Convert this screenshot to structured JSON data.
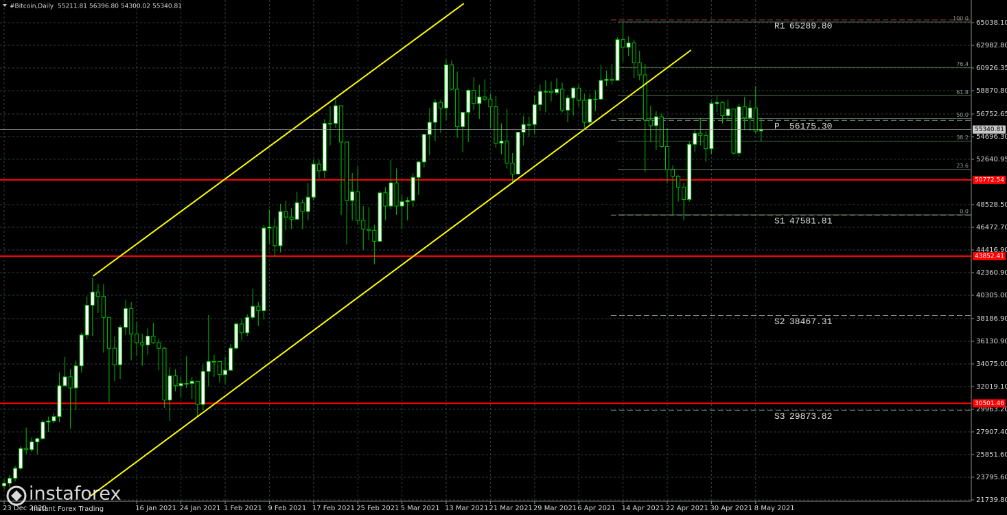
{
  "chart_data": {
    "type": "candlestick",
    "title": "#Bitcoin,Daily",
    "last_bar_labels": [
      "55211.81",
      "56396.80",
      "54300.02",
      "55340.81"
    ],
    "categories": [
      "23 Dec 2020",
      null,
      null,
      null,
      null,
      null,
      null,
      null,
      null,
      null,
      null,
      null,
      null,
      null,
      null,
      null,
      null,
      null,
      null,
      null,
      null,
      null,
      null,
      null,
      "16 Jan 2021",
      null,
      null,
      null,
      null,
      null,
      null,
      null,
      "24 Jan 2021",
      null,
      null,
      null,
      null,
      null,
      null,
      null,
      "1 Feb 2021",
      null,
      null,
      null,
      null,
      null,
      null,
      null,
      "9 Feb 2021",
      null,
      null,
      null,
      null,
      null,
      null,
      null,
      "17 Feb 2021",
      null,
      null,
      null,
      null,
      null,
      null,
      null,
      "25 Feb 2021",
      null,
      null,
      null,
      null,
      null,
      null,
      null,
      "5 Mar 2021",
      null,
      null,
      null,
      null,
      null,
      null,
      null,
      "13 Mar 2021",
      null,
      null,
      null,
      null,
      null,
      null,
      null,
      "21 Mar 2021",
      null,
      null,
      null,
      null,
      null,
      null,
      null,
      "29 Mar 2021",
      null,
      null,
      null,
      null,
      null,
      null,
      null,
      "6 Apr 2021",
      null,
      null,
      null,
      null,
      null,
      null,
      null,
      "14 Apr 2021",
      null,
      null,
      null,
      null,
      null,
      null,
      null,
      "22 Apr 2021",
      null,
      null,
      null,
      null,
      null,
      null,
      null,
      "30 Apr 2021",
      null,
      null,
      null,
      null,
      null,
      null,
      null,
      "8 May 2021",
      null
    ],
    "ohlc": [
      [
        23000,
        23600,
        22700,
        23250
      ],
      [
        23250,
        24000,
        22900,
        23700
      ],
      [
        23700,
        24800,
        23400,
        24600
      ],
      [
        24600,
        26600,
        24400,
        26400
      ],
      [
        26400,
        28300,
        25900,
        26300
      ],
      [
        26300,
        27400,
        26100,
        27000
      ],
      [
        27000,
        27400,
        25900,
        27300
      ],
      [
        27300,
        29000,
        27200,
        28800
      ],
      [
        28800,
        29300,
        27900,
        28900
      ],
      [
        28900,
        29600,
        28700,
        29300
      ],
      [
        29300,
        33300,
        28800,
        32100
      ],
      [
        32100,
        34700,
        32000,
        32900
      ],
      [
        32900,
        33600,
        28200,
        31900
      ],
      [
        31900,
        34400,
        29900,
        33900
      ],
      [
        33900,
        36900,
        33300,
        36700
      ],
      [
        36700,
        40200,
        36300,
        39400
      ],
      [
        39400,
        41900,
        36600,
        40600
      ],
      [
        40600,
        41300,
        38700,
        40200
      ],
      [
        40200,
        41300,
        35100,
        38300
      ],
      [
        38300,
        38300,
        30600,
        35500
      ],
      [
        35500,
        36600,
        32500,
        34000
      ],
      [
        34000,
        37600,
        32700,
        37400
      ],
      [
        37400,
        39900,
        36700,
        39100
      ],
      [
        39100,
        39700,
        34400,
        36800
      ],
      [
        36800,
        37900,
        34800,
        36000
      ],
      [
        36000,
        36800,
        33900,
        35800
      ],
      [
        35800,
        37300,
        34900,
        36600
      ],
      [
        36600,
        37800,
        35900,
        36000
      ],
      [
        36000,
        36400,
        33500,
        35500
      ],
      [
        35500,
        35600,
        30100,
        30800
      ],
      [
        30800,
        33800,
        28900,
        33000
      ],
      [
        33000,
        33600,
        31600,
        32100
      ],
      [
        32100,
        32900,
        31000,
        32300
      ],
      [
        32300,
        34800,
        31900,
        32300
      ],
      [
        32300,
        32900,
        30900,
        32500
      ],
      [
        32500,
        32500,
        29300,
        30400
      ],
      [
        30400,
        34000,
        29900,
        33400
      ],
      [
        33400,
        38500,
        32000,
        34300
      ],
      [
        34300,
        34900,
        32900,
        34300
      ],
      [
        34300,
        34300,
        32400,
        33100
      ],
      [
        33100,
        34700,
        32300,
        33500
      ],
      [
        33500,
        35900,
        33400,
        35500
      ],
      [
        35500,
        37800,
        35400,
        37700
      ],
      [
        37700,
        38200,
        36200,
        36900
      ],
      [
        36900,
        38600,
        36600,
        38300
      ],
      [
        38300,
        40900,
        38100,
        39300
      ],
      [
        39300,
        39700,
        37500,
        38900
      ],
      [
        38900,
        46700,
        38100,
        46400
      ],
      [
        46400,
        48100,
        45000,
        46500
      ],
      [
        46500,
        47300,
        43800,
        44800
      ],
      [
        44800,
        48600,
        44200,
        47900
      ],
      [
        47900,
        48900,
        46200,
        47400
      ],
      [
        47400,
        48200,
        46300,
        47200
      ],
      [
        47200,
        49700,
        47100,
        48700
      ],
      [
        48700,
        49000,
        46300,
        47900
      ],
      [
        47900,
        50500,
        47100,
        49200
      ],
      [
        49200,
        52600,
        48900,
        52200
      ],
      [
        52200,
        52600,
        50900,
        51600
      ],
      [
        51600,
        56300,
        50900,
        55900
      ],
      [
        55900,
        57500,
        53900,
        55900
      ],
      [
        55900,
        58300,
        55500,
        57500
      ],
      [
        57500,
        57500,
        47600,
        54200
      ],
      [
        54200,
        54200,
        44900,
        48900
      ],
      [
        48900,
        51400,
        47100,
        49700
      ],
      [
        49700,
        52000,
        46700,
        47100
      ],
      [
        47100,
        48400,
        44400,
        46300
      ],
      [
        46300,
        48300,
        45300,
        46200
      ],
      [
        46200,
        46700,
        43100,
        45200
      ],
      [
        45200,
        49800,
        45100,
        49600
      ],
      [
        49600,
        50100,
        47100,
        48400
      ],
      [
        48400,
        52600,
        48100,
        50500
      ],
      [
        50500,
        51800,
        47600,
        48400
      ],
      [
        48400,
        49400,
        46300,
        48800
      ],
      [
        48800,
        49200,
        47100,
        48900
      ],
      [
        48900,
        51400,
        48300,
        51000
      ],
      [
        51000,
        52500,
        49400,
        52400
      ],
      [
        52400,
        54900,
        51900,
        54900
      ],
      [
        54900,
        57300,
        53000,
        56000
      ],
      [
        56000,
        58100,
        54300,
        57800
      ],
      [
        57800,
        58000,
        55000,
        57300
      ],
      [
        57300,
        61700,
        56200,
        61200
      ],
      [
        61200,
        61600,
        58900,
        59000
      ],
      [
        59000,
        60600,
        54600,
        55600
      ],
      [
        55600,
        56900,
        53300,
        56900
      ],
      [
        56900,
        59000,
        54200,
        58900
      ],
      [
        58900,
        60100,
        57100,
        57700
      ],
      [
        57700,
        59400,
        56300,
        58300
      ],
      [
        58300,
        59900,
        57900,
        58100
      ],
      [
        58100,
        58600,
        55500,
        57400
      ],
      [
        57400,
        58400,
        53700,
        54100
      ],
      [
        54100,
        55900,
        53100,
        54300
      ],
      [
        54300,
        57200,
        51800,
        52300
      ],
      [
        52300,
        53200,
        50400,
        51300
      ],
      [
        51300,
        55100,
        51300,
        55100
      ],
      [
        55100,
        56600,
        53900,
        55800
      ],
      [
        55800,
        56500,
        54700,
        55800
      ],
      [
        55800,
        58400,
        54900,
        57600
      ],
      [
        57600,
        59400,
        57000,
        58800
      ],
      [
        58800,
        59800,
        56900,
        58800
      ],
      [
        58800,
        59700,
        57900,
        58700
      ],
      [
        58700,
        60000,
        58500,
        59000
      ],
      [
        59000,
        59600,
        56900,
        57100
      ],
      [
        57100,
        58500,
        56000,
        58200
      ],
      [
        58200,
        59200,
        56600,
        59100
      ],
      [
        59100,
        59500,
        57400,
        58000
      ],
      [
        58000,
        58600,
        55500,
        56000
      ],
      [
        56000,
        58600,
        55800,
        58100
      ],
      [
        58100,
        58900,
        57000,
        58100
      ],
      [
        58100,
        61200,
        58000,
        59800
      ],
      [
        59800,
        60700,
        59300,
        59900
      ],
      [
        59900,
        61300,
        59400,
        59800
      ],
      [
        59800,
        63700,
        59800,
        63500
      ],
      [
        63500,
        65000,
        61500,
        62800
      ],
      [
        62800,
        63800,
        62000,
        63200
      ],
      [
        63200,
        63500,
        60000,
        61400
      ],
      [
        61400,
        62500,
        59800,
        60300
      ],
      [
        60300,
        61300,
        51500,
        56200
      ],
      [
        56200,
        57500,
        54200,
        55700
      ],
      [
        55700,
        57000,
        53500,
        56500
      ],
      [
        56500,
        56800,
        53700,
        53800
      ],
      [
        53800,
        55500,
        50500,
        51700
      ],
      [
        51700,
        52100,
        47600,
        51100
      ],
      [
        51100,
        51200,
        48800,
        50100
      ],
      [
        50100,
        50500,
        47100,
        49000
      ],
      [
        49000,
        54300,
        48800,
        54000
      ],
      [
        54000,
        55400,
        53300,
        55000
      ],
      [
        55000,
        56400,
        53900,
        54800
      ],
      [
        54800,
        55200,
        52400,
        53600
      ],
      [
        53600,
        57900,
        53100,
        57700
      ],
      [
        57700,
        58400,
        56900,
        57800
      ],
      [
        57800,
        57900,
        55900,
        56600
      ],
      [
        56600,
        58100,
        56100,
        57200
      ],
      [
        57200,
        57200,
        53100,
        53200
      ],
      [
        53200,
        57700,
        52900,
        57400
      ],
      [
        57400,
        58300,
        55300,
        56400
      ],
      [
        56400,
        58000,
        55200,
        57300
      ],
      [
        57300,
        59300,
        55000,
        55200
      ],
      [
        55211.81,
        56396.8,
        54300.02,
        55340.81
      ]
    ],
    "colors": {
      "up_fill": "#ffffff",
      "down_fill": "#000000",
      "wick": "#00c000"
    },
    "ylim": [
      21615,
      67094
    ],
    "yticks": [
      {
        "value": 65038.1,
        "label": "65038.10"
      },
      {
        "value": 62982.8,
        "label": "62982.80"
      },
      {
        "value": 60926.35,
        "label": "60926.35"
      },
      {
        "value": 58870.8,
        "label": "58870.80"
      },
      {
        "value": 56752.65,
        "label": "56752.65"
      },
      {
        "value": 54696.3,
        "label": "54696.30"
      },
      {
        "value": 52640.95,
        "label": "52640.95"
      },
      {
        "value": 48528.5,
        "label": "48528.50"
      },
      {
        "value": 46472.7,
        "label": "46472.70"
      },
      {
        "value": 44416.9,
        "label": "44416.90"
      },
      {
        "value": 42360.9,
        "label": "42360.90"
      },
      {
        "value": 40305,
        "label": "40305.00"
      },
      {
        "value": 38186.9,
        "label": "38186.90"
      },
      {
        "value": 36130.9,
        "label": "36130.90"
      },
      {
        "value": 34075,
        "label": "34075.00"
      },
      {
        "value": 32019.1,
        "label": "32019.10"
      },
      {
        "value": 29963.2,
        "label": "29963.20"
      },
      {
        "value": 27907.4,
        "label": "27907.40"
      },
      {
        "value": 25851.6,
        "label": "25851.60"
      },
      {
        "value": 23795.6,
        "label": "23795.60"
      },
      {
        "value": 21739.8,
        "label": "21739.80"
      }
    ],
    "grid": true,
    "grid_color": "#2e4040",
    "last_price_color": "#a0a0a0",
    "levels": [
      {
        "value": 50772.54,
        "color": "#ff0000"
      },
      {
        "value": 43852.41,
        "color": "#ff0000"
      },
      {
        "value": 30501.46,
        "color": "#ff0000"
      }
    ],
    "pivots": [
      {
        "name": "R1",
        "value": 65289.8,
        "label": "65289.80",
        "color": "#a03a3a"
      },
      {
        "name": "P",
        "value": 56175.3,
        "label": "56175.30",
        "color": "#8a8a8a"
      },
      {
        "name": "S1",
        "value": 47581.81,
        "label": "47581.81",
        "color": "#8a8a8a"
      },
      {
        "name": "S2",
        "value": 38467.31,
        "label": "38467.31",
        "color": "#8a8a8a"
      },
      {
        "name": "S3",
        "value": 29873.82,
        "label": "29873.82",
        "color": "#8a8a8a"
      }
    ],
    "fibonacci": {
      "low": 47600,
      "high": 65100,
      "color": "#4f6f4f",
      "levels": [
        {
          "value": 100,
          "label": "100.0"
        },
        76.4,
        61.8,
        {
          "value": 50,
          "label": "50.0"
        },
        38.2,
        23.6,
        {
          "value": 0,
          "label": "0.0"
        }
      ]
    },
    "trendlines": [
      {
        "color": "#ffff00",
        "points": [
          [
            16.1,
            42049
          ],
          [
            83.2,
            66782
          ]
        ]
      },
      {
        "color": "#ffff00",
        "points": [
          [
            15.7,
            22114
          ],
          [
            124.3,
            62546
          ]
        ]
      }
    ]
  },
  "watermark": {
    "brand": "instaforex",
    "tagline": "Instant Forex Trading"
  }
}
